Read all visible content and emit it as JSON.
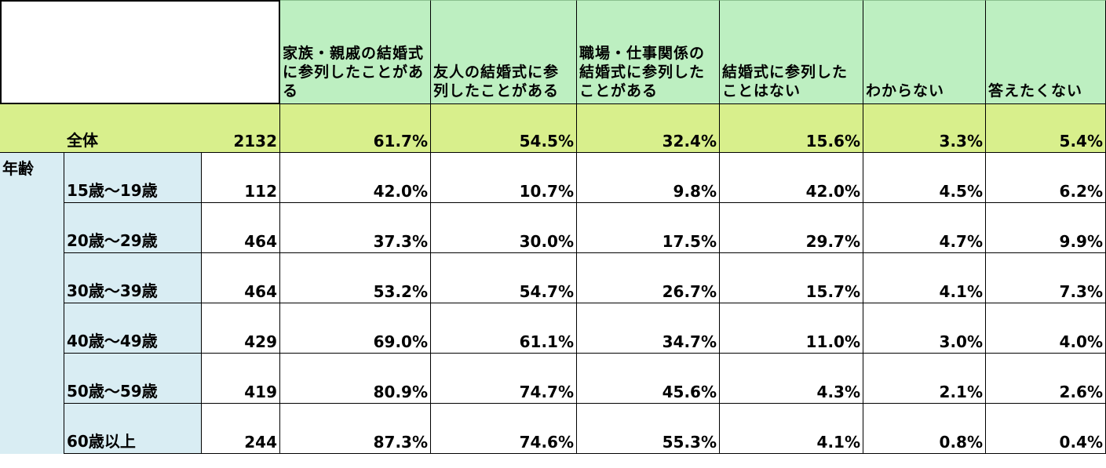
{
  "chart_data": {
    "type": "table",
    "columns": [
      "家族・親戚の結婚式に参列したことがある",
      "友人の結婚式に参列したことがある",
      "職場・仕事関係の結婚式に参列したことがある",
      "結婚式に参列したことはない",
      "わからない",
      "答えたくない"
    ],
    "total": {
      "label": "全体",
      "n": "2132",
      "values": [
        "61.7%",
        "54.5%",
        "32.4%",
        "15.6%",
        "3.3%",
        "5.4%"
      ]
    },
    "group_label": "年齢",
    "rows": [
      {
        "label": "15歳～19歳",
        "n": "112",
        "values": [
          "42.0%",
          "10.7%",
          "9.8%",
          "42.0%",
          "4.5%",
          "6.2%"
        ]
      },
      {
        "label": "20歳～29歳",
        "n": "464",
        "values": [
          "37.3%",
          "30.0%",
          "17.5%",
          "29.7%",
          "4.7%",
          "9.9%"
        ]
      },
      {
        "label": "30歳～39歳",
        "n": "464",
        "values": [
          "53.2%",
          "54.7%",
          "26.7%",
          "15.7%",
          "4.1%",
          "7.3%"
        ]
      },
      {
        "label": "40歳～49歳",
        "n": "429",
        "values": [
          "69.0%",
          "61.1%",
          "34.7%",
          "11.0%",
          "3.0%",
          "4.0%"
        ]
      },
      {
        "label": "50歳～59歳",
        "n": "419",
        "values": [
          "80.9%",
          "74.7%",
          "45.6%",
          "4.3%",
          "2.1%",
          "2.6%"
        ]
      },
      {
        "label": "60歳以上",
        "n": "244",
        "values": [
          "87.3%",
          "74.6%",
          "55.3%",
          "4.1%",
          "0.8%",
          "0.4%"
        ]
      }
    ]
  },
  "colors": {
    "header_bg": "#bdefc1",
    "total_bg": "#d8ef8c",
    "age_label_bg": "#d9edf3"
  }
}
